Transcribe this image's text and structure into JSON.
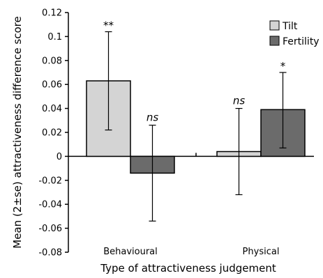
{
  "chart_data": {
    "type": "bar",
    "title": "",
    "xlabel": "Type of attractiveness judgement",
    "ylabel": "Mean (2±se) attractiveness difference score",
    "ylim": [
      -0.08,
      0.12
    ],
    "yticks": [
      "0.12",
      "0.1",
      "0.08",
      "0.06",
      "0.04",
      "0.02",
      "0",
      "-0.02",
      "-0.04",
      "-0.06",
      "-0.08"
    ],
    "categories": [
      "Behavioural",
      "Physical"
    ],
    "series": [
      {
        "name": "Tilt",
        "color": "#d4d4d4",
        "values": [
          0.063,
          0.004
        ],
        "err_low": [
          0.022,
          -0.032
        ],
        "err_high": [
          0.104,
          0.04
        ],
        "sig": [
          "**",
          "ns"
        ]
      },
      {
        "name": "Fertility",
        "color": "#6b6b6b",
        "values": [
          -0.014,
          0.039
        ],
        "err_low": [
          -0.054,
          0.007
        ],
        "err_high": [
          0.026,
          0.07
        ],
        "sig": [
          "ns",
          "*"
        ]
      }
    ],
    "legend": "top-right",
    "grid": false
  }
}
